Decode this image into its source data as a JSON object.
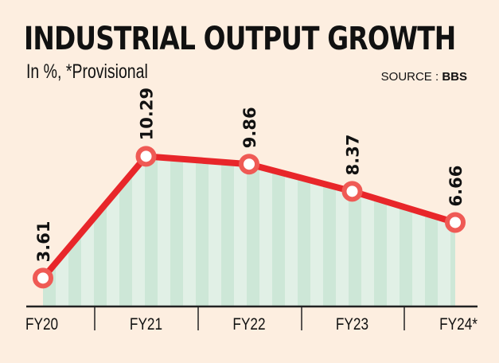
{
  "chart_data": {
    "type": "line",
    "title": "INDUSTRIAL OUTPUT GROWTH",
    "subtitle": "In %, *Provisional",
    "source_label": "SOURCE :",
    "source_value": "BBS",
    "categories": [
      "FY20",
      "FY21",
      "FY22",
      "FY23",
      "FY24*"
    ],
    "series": [
      {
        "name": "Industrial output growth",
        "values": [
          3.61,
          10.29,
          9.86,
          8.37,
          6.66
        ]
      }
    ],
    "data_labels": [
      "3.61",
      "10.29",
      "9.86",
      "8.37",
      "6.66"
    ],
    "xlabel": "",
    "ylabel": "",
    "ylim": [
      0,
      12
    ],
    "grid": false,
    "colors": {
      "line": "#e8262a",
      "marker": "#ef5a55",
      "fill_a": "#cde7d7",
      "fill_b": "#e1f0e6",
      "background": "#fdeee0"
    }
  }
}
